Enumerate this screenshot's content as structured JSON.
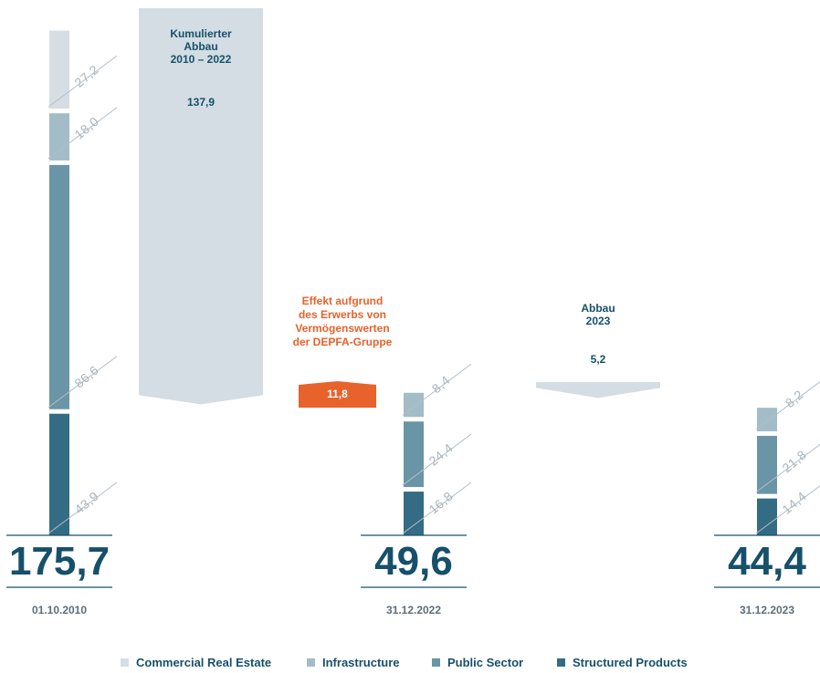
{
  "colors": {
    "commercial_real_estate": "#d6dee4",
    "infrastructure": "#a2bcc8",
    "public_sector": "#6a95a6",
    "structured_products": "#336c84",
    "total_text": "#16506a",
    "date_text": "#5a6f7b",
    "reduction_arrow": "#d3dde3",
    "effect_orange": "#e8622c",
    "label_line": "#b3bec6"
  },
  "chart_data": {
    "type": "bar",
    "stacked": true,
    "categories": [
      "01.10.2010",
      "31.12.2022",
      "31.12.2023"
    ],
    "series": [
      {
        "name": "Commercial Real Estate",
        "values": [
          27.2,
          0,
          0
        ]
      },
      {
        "name": "Infrastructure",
        "values": [
          18.0,
          8.4,
          8.2
        ]
      },
      {
        "name": "Public Sector",
        "values": [
          86.6,
          24.4,
          21.8
        ]
      },
      {
        "name": "Structured Products",
        "values": [
          43.9,
          16.8,
          14.4
        ]
      }
    ],
    "segment_labels": [
      [
        "43,9",
        "86,6",
        "18,0",
        "27,2"
      ],
      [
        "16,8",
        "24,4",
        "8,4"
      ],
      [
        "14,4",
        "21,8",
        "8,2"
      ]
    ],
    "totals": [
      "175,7",
      "49,6",
      "44,4"
    ],
    "bridges": [
      {
        "kind": "reduction",
        "title_lines": [
          "Kumulierter",
          "Abbau",
          "2010 – 2022"
        ],
        "value_label": "137,9",
        "value": 137.9
      },
      {
        "kind": "increase",
        "title_lines": [
          "Effekt aufgrund",
          "des Erwerbs von",
          "Vermögenswerten",
          "der DEPFA-Gruppe"
        ],
        "value_label": "11,8",
        "value": 11.8
      },
      {
        "kind": "reduction",
        "title_lines": [
          "Abbau",
          "2023"
        ],
        "value_label": "5,2",
        "value": 5.2
      }
    ],
    "legend": [
      "Commercial Real Estate",
      "Infrastructure",
      "Public Sector",
      "Structured Products"
    ],
    "legend_position": "bottom"
  }
}
